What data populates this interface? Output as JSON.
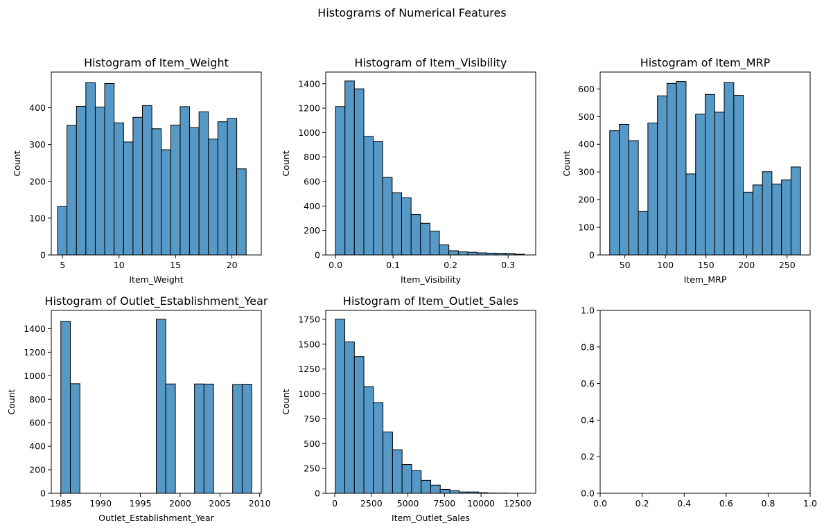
{
  "figure": {
    "suptitle": "Histograms of Numerical Features",
    "bar_color": "#5698c6",
    "edge_color": "#000000"
  },
  "chart_data": [
    {
      "type": "bar",
      "title": "Histogram of Item_Weight",
      "xlabel": "Item_Weight",
      "ylabel": "Count",
      "bin_edges": [
        4.555,
        5.39,
        6.226,
        7.061,
        7.896,
        8.732,
        9.567,
        10.403,
        11.238,
        12.073,
        12.909,
        13.744,
        14.579,
        15.415,
        16.25,
        17.086,
        17.921,
        18.756,
        19.592,
        20.427,
        21.262
      ],
      "values": [
        132,
        352,
        404,
        468,
        402,
        466,
        359,
        307,
        374,
        406,
        343,
        286,
        353,
        403,
        346,
        389,
        315,
        362,
        371,
        234
      ],
      "xticks": [
        5,
        10,
        15,
        20
      ],
      "xtick_labels": [
        "5",
        "10",
        "15",
        "20"
      ],
      "yticks": [
        0,
        100,
        200,
        300,
        400
      ],
      "ytick_labels": [
        "0",
        "100",
        "200",
        "300",
        "400"
      ],
      "xlim": [
        4.0,
        22.6
      ],
      "ylim": [
        0,
        497
      ]
    },
    {
      "type": "bar",
      "title": "Histogram of Item_Visibility",
      "xlabel": "Item_Visibility",
      "ylabel": "Count",
      "bin_edges": [
        0.0,
        0.0164,
        0.0328,
        0.0493,
        0.0657,
        0.0821,
        0.0985,
        0.1149,
        0.1314,
        0.1478,
        0.1642,
        0.1806,
        0.197,
        0.2135,
        0.2299,
        0.2463,
        0.2627,
        0.2791,
        0.2956,
        0.312,
        0.3284
      ],
      "values": [
        1213,
        1422,
        1358,
        969,
        926,
        634,
        509,
        467,
        331,
        259,
        195,
        83,
        34,
        26,
        22,
        17,
        15,
        14,
        12,
        6
      ],
      "xticks": [
        0.0,
        0.1,
        0.2,
        0.3
      ],
      "xtick_labels": [
        "0.0",
        "0.1",
        "0.2",
        "0.3"
      ],
      "yticks": [
        0,
        200,
        400,
        600,
        800,
        1000,
        1200,
        1400
      ],
      "ytick_labels": [
        "0",
        "200",
        "400",
        "600",
        "800",
        "1000",
        "1200",
        "1400"
      ],
      "xlim": [
        -0.017,
        0.348
      ],
      "ylim": [
        0,
        1495
      ]
    },
    {
      "type": "bar",
      "title": "Histogram of Item_MRP",
      "xlabel": "Item_MRP",
      "ylabel": "Count",
      "bin_edges": [
        31.29,
        43.06,
        54.82,
        66.59,
        78.35,
        90.12,
        101.88,
        113.65,
        125.41,
        137.18,
        148.94,
        160.71,
        172.47,
        184.24,
        196.0,
        207.77,
        219.53,
        231.3,
        243.06,
        254.83,
        266.59
      ],
      "values": [
        449,
        472,
        413,
        157,
        477,
        575,
        620,
        627,
        293,
        509,
        580,
        516,
        623,
        577,
        227,
        253,
        301,
        256,
        271,
        318
      ],
      "xticks": [
        50,
        100,
        150,
        200,
        250
      ],
      "xtick_labels": [
        "50",
        "100",
        "150",
        "200",
        "250"
      ],
      "yticks": [
        0,
        100,
        200,
        300,
        400,
        500,
        600
      ],
      "ytick_labels": [
        "0",
        "100",
        "200",
        "300",
        "400",
        "500",
        "600"
      ],
      "xlim": [
        19.5,
        278.4
      ],
      "ylim": [
        0,
        661
      ]
    },
    {
      "type": "bar",
      "title": "Histogram of Outlet_Establishment_Year",
      "xlabel": "Outlet_Establishment_Year",
      "ylabel": "Count",
      "bin_edges": [
        1985,
        1986.2,
        1987.4,
        1988.6,
        1989.8,
        1991,
        1992.2,
        1993.4,
        1994.6,
        1995.8,
        1997,
        1998.2,
        1999.4,
        2000.6,
        2001.8,
        2003,
        2004.2,
        2005.4,
        2006.6,
        2007.8,
        2009
      ],
      "values": [
        1463,
        932,
        0,
        0,
        0,
        0,
        0,
        0,
        0,
        0,
        1481,
        930,
        0,
        0,
        930,
        929,
        0,
        0,
        926,
        928
      ],
      "xticks": [
        1985,
        1990,
        1995,
        2000,
        2005,
        2010
      ],
      "xtick_labels": [
        "1985",
        "1990",
        "1995",
        "2000",
        "2005",
        "2010"
      ],
      "yticks": [
        0,
        200,
        400,
        600,
        800,
        1000,
        1200,
        1400
      ],
      "ytick_labels": [
        "0",
        "200",
        "400",
        "600",
        "800",
        "1000",
        "1200",
        "1400"
      ],
      "xlim": [
        1983.8,
        2010.2
      ],
      "ylim": [
        0,
        1556
      ]
    },
    {
      "type": "bar",
      "title": "Histogram of Item_Outlet_Sales",
      "xlabel": "Item_Outlet_Sales",
      "ylabel": "Count",
      "bin_edges": [
        33.29,
        685.85,
        1338.4,
        1990.96,
        2643.51,
        3296.07,
        3948.62,
        4601.18,
        5253.73,
        5906.29,
        6558.84,
        7211.4,
        7863.95,
        8516.51,
        9169.06,
        9821.62,
        10474.17,
        11126.73,
        11779.28,
        12431.84,
        13084.39
      ],
      "values": [
        1752,
        1523,
        1375,
        1073,
        912,
        617,
        438,
        289,
        228,
        130,
        82,
        39,
        27,
        13,
        13,
        6,
        3,
        2,
        1,
        1
      ],
      "xticks": [
        0,
        2500,
        5000,
        7500,
        10000,
        12500
      ],
      "xtick_labels": [
        "0",
        "2500",
        "5000",
        "7500",
        "10000",
        "12500"
      ],
      "yticks": [
        0,
        250,
        500,
        750,
        1000,
        1250,
        1500,
        1750
      ],
      "ytick_labels": [
        "0",
        "250",
        "500",
        "750",
        "1000",
        "1250",
        "1500",
        "1750"
      ],
      "xlim": [
        -619,
        13737
      ],
      "ylim": [
        0,
        1840
      ]
    },
    {
      "type": "bar",
      "title": "",
      "xlabel": "",
      "ylabel": "",
      "bin_edges": [],
      "values": [],
      "xticks": [
        0.0,
        0.2,
        0.4,
        0.6,
        0.8,
        1.0
      ],
      "xtick_labels": [
        "0.0",
        "0.2",
        "0.4",
        "0.6",
        "0.8",
        "1.0"
      ],
      "yticks": [
        0.0,
        0.2,
        0.4,
        0.6,
        0.8,
        1.0
      ],
      "ytick_labels": [
        "0.0",
        "0.2",
        "0.4",
        "0.6",
        "0.8",
        "1.0"
      ],
      "xlim": [
        0,
        1
      ],
      "ylim": [
        0,
        1
      ]
    }
  ]
}
